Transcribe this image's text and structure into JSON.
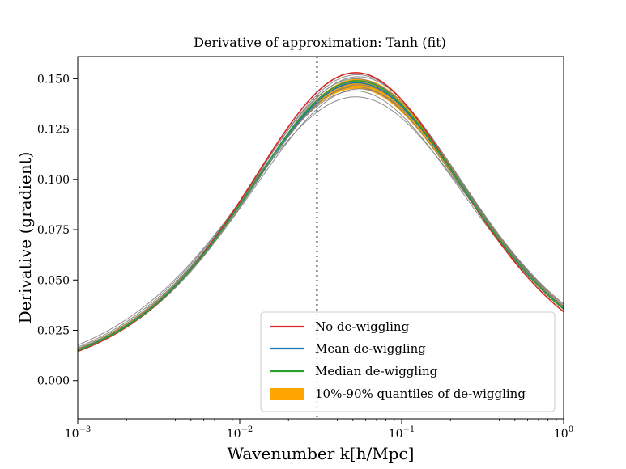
{
  "chart_data": {
    "type": "line",
    "title": "Derivative of approximation: Tanh (fit)",
    "xlabel": "Wavenumber k[h/Mpc]",
    "ylabel": "Derivative (gradient)",
    "xscale": "log",
    "xlim": [
      0.001,
      1
    ],
    "ylim": [
      -0.019,
      0.161
    ],
    "x_ticks": [
      {
        "value": 0.001,
        "base": "10",
        "exp": "−3"
      },
      {
        "value": 0.01,
        "base": "10",
        "exp": "−2"
      },
      {
        "value": 0.1,
        "base": "10",
        "exp": "−1"
      },
      {
        "value": 1,
        "base": "10",
        "exp": "0"
      }
    ],
    "y_ticks": [
      {
        "value": 0.0,
        "label": "0.000"
      },
      {
        "value": 0.025,
        "label": "0.025"
      },
      {
        "value": 0.05,
        "label": "0.050"
      },
      {
        "value": 0.075,
        "label": "0.075"
      },
      {
        "value": 0.1,
        "label": "0.100"
      },
      {
        "value": 0.125,
        "label": "0.125"
      },
      {
        "value": 0.15,
        "label": "0.150"
      }
    ],
    "vline": {
      "x": 0.03,
      "style": "dotted",
      "color": "#808080"
    },
    "curve_model": "tanh-derivative in log10(k): y = peak * sech^2((log10(k) - log10(k_peak)) / width)",
    "series": [
      {
        "name": "No de-wiggling",
        "color": "#d62728",
        "peak": 0.153,
        "k_peak": 0.052,
        "width": 0.93
      },
      {
        "name": "Mean de-wiggling",
        "color": "#1f77b4",
        "peak": 0.148,
        "k_peak": 0.053,
        "width": 0.955
      },
      {
        "name": "Median de-wiggling",
        "color": "#2ca02c",
        "peak": 0.149,
        "k_peak": 0.053,
        "width": 0.95
      }
    ],
    "quantile_band": {
      "name": "10%-90% quantiles of de-wiggling",
      "color": "#ffa500",
      "upper": {
        "peak": 0.15,
        "k_peak": 0.054,
        "width": 0.96
      },
      "lower": {
        "peak": 0.145,
        "k_peak": 0.052,
        "width": 0.975
      }
    },
    "samples": [
      {
        "peak": 0.153,
        "k_peak": 0.052,
        "width": 0.93
      },
      {
        "peak": 0.152,
        "k_peak": 0.053,
        "width": 0.94
      },
      {
        "peak": 0.151,
        "k_peak": 0.054,
        "width": 0.945
      },
      {
        "peak": 0.15,
        "k_peak": 0.052,
        "width": 0.95
      },
      {
        "peak": 0.149,
        "k_peak": 0.055,
        "width": 0.955
      },
      {
        "peak": 0.148,
        "k_peak": 0.053,
        "width": 0.96
      },
      {
        "peak": 0.147,
        "k_peak": 0.054,
        "width": 0.965
      },
      {
        "peak": 0.146,
        "k_peak": 0.052,
        "width": 0.97
      },
      {
        "peak": 0.145,
        "k_peak": 0.055,
        "width": 0.975
      },
      {
        "peak": 0.144,
        "k_peak": 0.051,
        "width": 0.98
      },
      {
        "peak": 0.141,
        "k_peak": 0.052,
        "width": 1.01
      }
    ],
    "sample_color": "#808080",
    "legend": {
      "placement": "lower-right"
    }
  }
}
